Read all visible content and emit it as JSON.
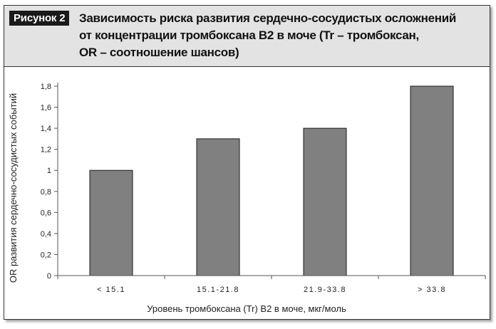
{
  "figure": {
    "label": "Рисунок 2",
    "title_lines": [
      "Зависимость риска развития сердечно-сосудистых осложнений",
      "от концентрации тромбоксана B2 в моче (Tr – тромбоксан,",
      "OR – соотношение шансов)"
    ]
  },
  "chart_data": {
    "type": "bar",
    "categories": [
      "< 15.1",
      "15.1-21.8",
      "21.9-33.8",
      "> 33.8"
    ],
    "values": [
      1.0,
      1.3,
      1.4,
      1.8
    ],
    "title": "Зависимость риска развития сердечно-сосудистых осложнений от концентрации тромбоксана B2 в моче (Tr – тромбоксан, OR – соотношение шансов)",
    "xlabel": "Уровень тромбоксана (Tr) B2 в моче, мкг/моль",
    "ylabel": "OR развития сердечно-сосудистых событий",
    "ylim": [
      0,
      1.8
    ],
    "yticks": [
      "0",
      "0,2",
      "0,4",
      "0,6",
      "0,8",
      "1",
      "1,2",
      "1,4",
      "1,6",
      "1,8"
    ],
    "grid": false,
    "legend": "none",
    "colors": {
      "bar_fill": "#808080",
      "bar_stroke": "#1a1a1a",
      "axis": "#555555"
    }
  }
}
